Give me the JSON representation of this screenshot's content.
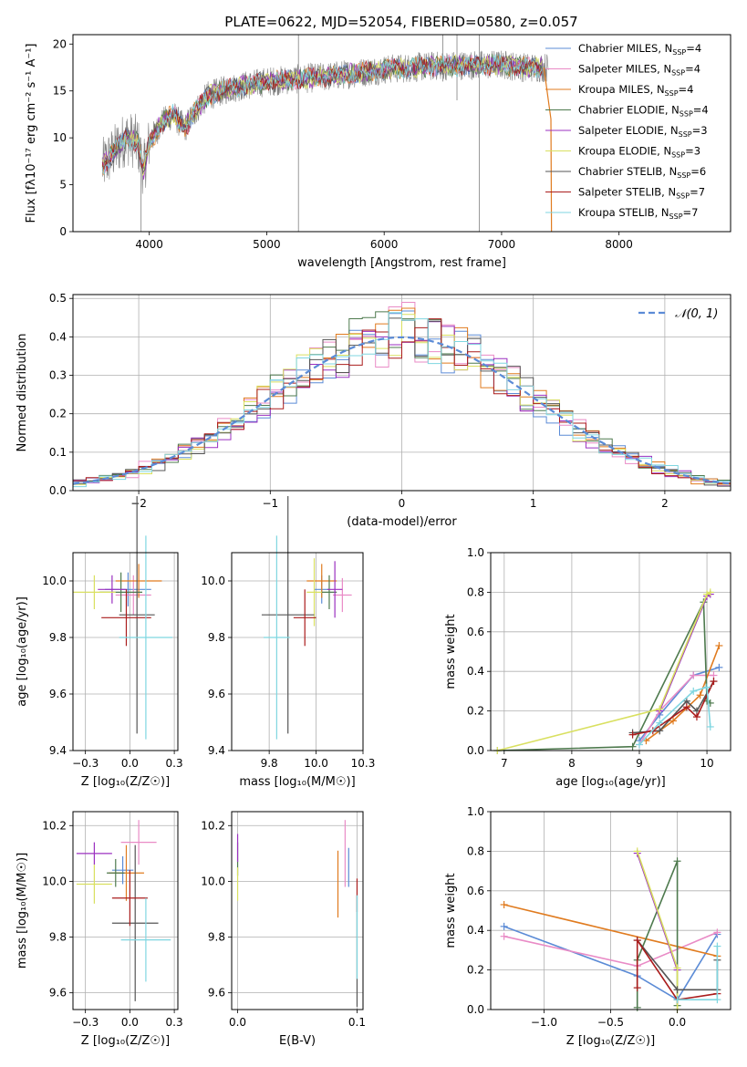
{
  "figure_title": "PLATE=0622, MJD=52054, FIBERID=0580, z=0.057",
  "colors": {
    "Chabrier MILES": "#5b8bd6",
    "Salpeter MILES": "#e98bc6",
    "Kroupa MILES": "#e07b1f",
    "Chabrier ELODIE": "#4e7a4e",
    "Salpeter ELODIE": "#9b30c0",
    "Kroupa ELODIE": "#d9e060",
    "Chabrier STELIB": "#555555",
    "Salpeter STELIB": "#aa1c1c",
    "Kroupa STELIB": "#7fd6e0",
    "data": "#808080",
    "gaussian": "#5b8bd6"
  },
  "chart_data": [
    {
      "id": "spectrum",
      "type": "line",
      "xlabel": "wavelength [Angstrom, rest frame]",
      "ylabel": "Flux [fλ10⁻¹⁷ erg cm⁻² s⁻¹ A⁻¹]",
      "xlim": [
        3350,
        8950
      ],
      "ylim": [
        0,
        21
      ],
      "xticks": [
        4000,
        5000,
        6000,
        7000,
        8000
      ],
      "yticks": [
        0,
        5,
        10,
        15,
        20
      ],
      "grid": false,
      "legend_position": "top-right",
      "legend": [
        {
          "label": "Chabrier MILES, N",
          "sub": "SSP",
          "tail": "=4"
        },
        {
          "label": "Salpeter MILES, N",
          "sub": "SSP",
          "tail": "=4"
        },
        {
          "label": "Kroupa MILES, N",
          "sub": "SSP",
          "tail": "=4"
        },
        {
          "label": "Chabrier ELODIE, N",
          "sub": "SSP",
          "tail": "=4"
        },
        {
          "label": "Salpeter ELODIE, N",
          "sub": "SSP",
          "tail": "=3"
        },
        {
          "label": "Kroupa ELODIE, N",
          "sub": "SSP",
          "tail": "=3"
        },
        {
          "label": "Chabrier STELIB, N",
          "sub": "SSP",
          "tail": "=6"
        },
        {
          "label": "Salpeter STELIB, N",
          "sub": "SSP",
          "tail": "=7"
        },
        {
          "label": "Kroupa STELIB, N",
          "sub": "SSP",
          "tail": "=7"
        }
      ],
      "continuum": {
        "x": [
          3600,
          3700,
          3800,
          3900,
          3950,
          4000,
          4100,
          4200,
          4300,
          4400,
          4500,
          4700,
          5000,
          5500,
          6000,
          6500,
          7000,
          7200,
          7350
        ],
        "y": [
          7.0,
          8.5,
          10.0,
          9.5,
          6.5,
          9.5,
          11.5,
          12.5,
          11.0,
          13.0,
          14.5,
          15.3,
          16.0,
          16.5,
          17.3,
          17.7,
          17.8,
          17.5,
          17.5
        ]
      }
    },
    {
      "id": "histogram",
      "type": "bar",
      "xlabel": "(data-model)/error",
      "ylabel": "Normed distribution",
      "xlim": [
        -2.5,
        2.5
      ],
      "ylim": [
        0,
        0.51
      ],
      "xticks": [
        -2,
        -1,
        0,
        1,
        2
      ],
      "yticks": [
        0.0,
        0.1,
        0.2,
        0.3,
        0.4,
        0.5
      ],
      "grid": true,
      "bin_width": 0.1,
      "legend_position": "top-right",
      "legend": [
        "𝒩(0, 1)"
      ]
    },
    {
      "id": "age-vs-Z",
      "type": "scatter",
      "xlabel": "Z [log₁₀(Z/Z☉)]",
      "ylabel": "age  [log₁₀(age/yr)]",
      "xlim": [
        -0.32,
        0.27
      ],
      "ylim": [
        9.4,
        10.1
      ],
      "xticks": [
        -0.25,
        0.0,
        0.25
      ],
      "yticks": [
        9.4,
        9.6,
        9.8,
        10.0
      ],
      "grid": true,
      "points": [
        {
          "model": "Chabrier MILES",
          "x": -0.01,
          "xerr": 0.13,
          "y": 9.97,
          "yerr": 0.06
        },
        {
          "model": "Salpeter MILES",
          "x": 0.02,
          "xerr": 0.1,
          "y": 9.95,
          "yerr": 0.07
        },
        {
          "model": "Kroupa MILES",
          "x": 0.05,
          "xerr": 0.13,
          "y": 10.0,
          "yerr": 0.06
        },
        {
          "model": "Chabrier ELODIE",
          "x": -0.05,
          "xerr": 0.12,
          "y": 9.96,
          "yerr": 0.07
        },
        {
          "model": "Salpeter ELODIE",
          "x": -0.1,
          "xerr": 0.08,
          "y": 9.97,
          "yerr": 0.05
        },
        {
          "model": "Kroupa ELODIE",
          "x": -0.2,
          "xerr": 0.12,
          "y": 9.96,
          "yerr": 0.06
        },
        {
          "model": "Chabrier STELIB",
          "x": 0.04,
          "xerr": 0.1,
          "y": 9.88,
          "yerr": 0.42
        },
        {
          "model": "Salpeter STELIB",
          "x": -0.02,
          "xerr": 0.14,
          "y": 9.87,
          "yerr": 0.1
        },
        {
          "model": "Kroupa STELIB",
          "x": 0.09,
          "xerr": 0.15,
          "y": 9.8,
          "yerr": 0.36
        }
      ]
    },
    {
      "id": "age-vs-mass",
      "type": "scatter",
      "xlabel": "mass [log₁₀(M/M☉)]",
      "ylabel": "",
      "xlim": [
        9.55,
        10.25
      ],
      "ylim": [
        9.4,
        10.1
      ],
      "xticks": [
        9.75,
        10.0,
        10.25
      ],
      "yticks": [
        9.4,
        9.6,
        9.8,
        10.0
      ],
      "grid": true,
      "points": [
        {
          "model": "Chabrier MILES",
          "x": 10.03,
          "xerr": 0.04,
          "y": 9.97,
          "yerr": 0.05
        },
        {
          "model": "Salpeter MILES",
          "x": 10.14,
          "xerr": 0.05,
          "y": 9.95,
          "yerr": 0.06
        },
        {
          "model": "Kroupa MILES",
          "x": 10.03,
          "xerr": 0.08,
          "y": 10.0,
          "yerr": 0.06
        },
        {
          "model": "Chabrier ELODIE",
          "x": 10.07,
          "xerr": 0.04,
          "y": 9.96,
          "yerr": 0.06
        },
        {
          "model": "Salpeter ELODIE",
          "x": 10.1,
          "xerr": 0.04,
          "y": 9.97,
          "yerr": 0.1
        },
        {
          "model": "Kroupa ELODIE",
          "x": 9.99,
          "xerr": 0.04,
          "y": 9.96,
          "yerr": 0.12
        },
        {
          "model": "Chabrier STELIB",
          "x": 9.85,
          "xerr": 0.14,
          "y": 9.88,
          "yerr": 0.42
        },
        {
          "model": "Salpeter STELIB",
          "x": 9.94,
          "xerr": 0.06,
          "y": 9.87,
          "yerr": 0.1
        },
        {
          "model": "Kroupa STELIB",
          "x": 9.79,
          "xerr": 0.07,
          "y": 9.8,
          "yerr": 0.36
        }
      ]
    },
    {
      "id": "mass-weight-vs-age",
      "type": "line",
      "xlabel": "age  [log₁₀(age/yr)]",
      "ylabel": "mass weight",
      "xlim": [
        6.8,
        10.35
      ],
      "ylim": [
        0,
        1.0
      ],
      "xticks": [
        7,
        8,
        9,
        10
      ],
      "yticks": [
        0.0,
        0.2,
        0.4,
        0.6,
        0.8,
        1.0
      ],
      "grid": true,
      "series": [
        {
          "model": "Chabrier MILES",
          "x": [
            9.0,
            9.3,
            9.8,
            10.18
          ],
          "y": [
            0.05,
            0.18,
            0.38,
            0.42
          ]
        },
        {
          "model": "Salpeter MILES",
          "x": [
            9.0,
            9.3,
            9.8,
            10.1
          ],
          "y": [
            0.03,
            0.2,
            0.38,
            0.38
          ]
        },
        {
          "model": "Kroupa MILES",
          "x": [
            9.1,
            9.5,
            9.9,
            10.18
          ],
          "y": [
            0.05,
            0.15,
            0.28,
            0.53
          ]
        },
        {
          "model": "Chabrier ELODIE",
          "x": [
            6.9,
            8.9,
            9.95,
            10.0,
            10.05
          ],
          "y": [
            0.0,
            0.02,
            0.75,
            0.25,
            0.24
          ]
        },
        {
          "model": "Salpeter ELODIE",
          "x": [
            9.3,
            10.0,
            10.05
          ],
          "y": [
            0.2,
            0.78,
            0.79
          ]
        },
        {
          "model": "Kroupa ELODIE",
          "x": [
            6.9,
            9.3,
            10.0,
            10.05
          ],
          "y": [
            0.0,
            0.21,
            0.79,
            0.8
          ]
        },
        {
          "model": "Chabrier STELIB",
          "x": [
            8.9,
            9.3,
            9.7,
            9.85,
            10.1
          ],
          "y": [
            0.09,
            0.1,
            0.25,
            0.2,
            0.35
          ]
        },
        {
          "model": "Salpeter STELIB",
          "x": [
            8.9,
            9.2,
            9.7,
            9.85,
            10.1
          ],
          "y": [
            0.08,
            0.1,
            0.22,
            0.17,
            0.35
          ]
        },
        {
          "model": "Kroupa STELIB",
          "x": [
            9.0,
            9.3,
            9.8,
            10.0,
            10.05
          ],
          "y": [
            0.03,
            0.14,
            0.3,
            0.32,
            0.12
          ]
        }
      ]
    },
    {
      "id": "mass-vs-Z",
      "type": "scatter",
      "xlabel": "Z [log₁₀(Z/Z☉)]",
      "ylabel": "mass [log₁₀(M/M☉)]",
      "xlim": [
        -0.32,
        0.27
      ],
      "ylim": [
        9.54,
        10.25
      ],
      "xticks": [
        -0.25,
        0.0,
        0.25
      ],
      "yticks": [
        9.6,
        9.8,
        10.0,
        10.2
      ],
      "grid": true,
      "points": [
        {
          "model": "Chabrier MILES",
          "x": -0.04,
          "xerr": 0.06,
          "y": 10.04,
          "yerr": 0.05
        },
        {
          "model": "Salpeter MILES",
          "x": 0.05,
          "xerr": 0.1,
          "y": 10.14,
          "yerr": 0.08
        },
        {
          "model": "Kroupa MILES",
          "x": -0.02,
          "xerr": 0.1,
          "y": 10.03,
          "yerr": 0.1
        },
        {
          "model": "Chabrier ELODIE",
          "x": -0.08,
          "xerr": 0.05,
          "y": 10.03,
          "yerr": 0.05
        },
        {
          "model": "Salpeter ELODIE",
          "x": -0.2,
          "xerr": 0.1,
          "y": 10.1,
          "yerr": 0.04
        },
        {
          "model": "Kroupa ELODIE",
          "x": -0.2,
          "xerr": 0.1,
          "y": 9.99,
          "yerr": 0.07
        },
        {
          "model": "Chabrier STELIB",
          "x": 0.03,
          "xerr": 0.13,
          "y": 9.85,
          "yerr": 0.28
        },
        {
          "model": "Salpeter STELIB",
          "x": 0.0,
          "xerr": 0.1,
          "y": 9.94,
          "yerr": 0.1
        },
        {
          "model": "Kroupa STELIB",
          "x": 0.09,
          "xerr": 0.14,
          "y": 9.79,
          "yerr": 0.15
        }
      ]
    },
    {
      "id": "mass-vs-EBV",
      "type": "scatter",
      "xlabel": "E(B-V)",
      "ylabel": "",
      "xlim": [
        -0.005,
        0.105
      ],
      "ylim": [
        9.54,
        10.25
      ],
      "xticks": [
        0.0,
        0.1
      ],
      "yticks": [
        9.6,
        9.8,
        10.0,
        10.2
      ],
      "grid": true,
      "points": [
        {
          "model": "Chabrier MILES",
          "x": 0.093,
          "xerr": 0.0,
          "y": 10.05,
          "yerr": 0.07
        },
        {
          "model": "Salpeter MILES",
          "x": 0.09,
          "xerr": 0.0,
          "y": 10.1,
          "yerr": 0.12
        },
        {
          "model": "Kroupa MILES",
          "x": 0.084,
          "xerr": 0.0,
          "y": 9.99,
          "yerr": 0.12
        },
        {
          "model": "Chabrier ELODIE",
          "x": 0.0,
          "xerr": 0.0,
          "y": 10.08,
          "yerr": 0.06
        },
        {
          "model": "Salpeter ELODIE",
          "x": 0.0,
          "xerr": 0.0,
          "y": 10.12,
          "yerr": 0.05
        },
        {
          "model": "Kroupa ELODIE",
          "x": 0.0,
          "xerr": 0.0,
          "y": 9.99,
          "yerr": 0.06
        },
        {
          "model": "Chabrier STELIB",
          "x": 0.1,
          "xerr": 0.0,
          "y": 9.75,
          "yerr": 0.2
        },
        {
          "model": "Salpeter STELIB",
          "x": 0.1,
          "xerr": 0.0,
          "y": 9.95,
          "yerr": 0.06
        },
        {
          "model": "Kroupa STELIB",
          "x": 0.1,
          "xerr": 0.0,
          "y": 9.8,
          "yerr": 0.15
        }
      ]
    },
    {
      "id": "mass-weight-vs-Z",
      "type": "line",
      "xlabel": "Z [log₁₀(Z/Z☉)]",
      "ylabel": "mass weight",
      "xlim": [
        -1.4,
        0.4
      ],
      "ylim": [
        0,
        1.0
      ],
      "xticks": [
        -1.0,
        -0.5,
        0.0
      ],
      "yticks": [
        0.0,
        0.2,
        0.4,
        0.6,
        0.8,
        1.0
      ],
      "grid": true,
      "series": [
        {
          "model": "Chabrier MILES",
          "x": [
            -1.3,
            -0.3,
            0.0,
            0.3
          ],
          "y": [
            0.42,
            0.17,
            0.05,
            0.38
          ]
        },
        {
          "model": "Salpeter MILES",
          "x": [
            -1.3,
            -0.3,
            0.3
          ],
          "y": [
            0.37,
            0.22,
            0.39
          ]
        },
        {
          "model": "Kroupa MILES",
          "x": [
            -1.3,
            0.3
          ],
          "y": [
            0.53,
            0.27
          ]
        },
        {
          "model": "Chabrier ELODIE",
          "x": [
            -0.3,
            -0.3,
            0.0,
            0.0
          ],
          "y": [
            0.01,
            0.25,
            0.75,
            0.02
          ]
        },
        {
          "model": "Salpeter ELODIE",
          "x": [
            -0.3,
            0.0
          ],
          "y": [
            0.79,
            0.2
          ]
        },
        {
          "model": "Kroupa ELODIE",
          "x": [
            -0.3,
            0.0,
            0.0
          ],
          "y": [
            0.8,
            0.21,
            0.0
          ]
        },
        {
          "model": "Chabrier STELIB",
          "x": [
            -0.3,
            0.0,
            0.3,
            0.3
          ],
          "y": [
            0.35,
            0.1,
            0.1,
            0.25
          ]
        },
        {
          "model": "Salpeter STELIB",
          "x": [
            -0.3,
            -0.3,
            0.0,
            0.3
          ],
          "y": [
            0.11,
            0.35,
            0.05,
            0.08
          ]
        },
        {
          "model": "Kroupa STELIB",
          "x": [
            0.0,
            0.3,
            0.3
          ],
          "y": [
            0.05,
            0.05,
            0.32
          ]
        }
      ]
    }
  ]
}
